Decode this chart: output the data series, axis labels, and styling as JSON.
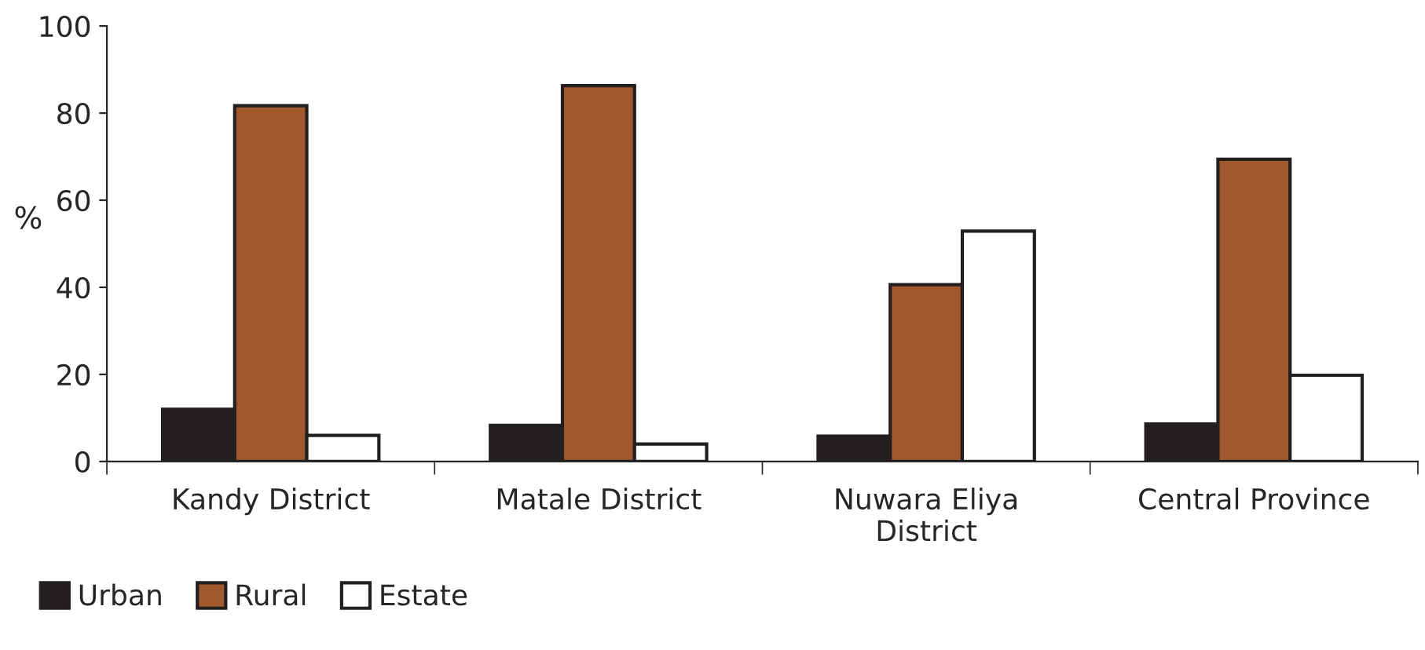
{
  "chart_data": {
    "type": "bar",
    "ylabel": "%",
    "categories": [
      "Kandy District",
      "Matale District",
      "Nuwara Eliya\nDistrict",
      "Central Province"
    ],
    "series": [
      {
        "name": "Urban",
        "color": "#231f20",
        "values": [
          12,
          8.3,
          5.8,
          8.6
        ]
      },
      {
        "name": "Rural",
        "color": "#a0582c",
        "values": [
          81.7,
          86.3,
          40.6,
          69.4
        ]
      },
      {
        "name": "Estate",
        "color": "#ffffff",
        "values": [
          6,
          4,
          52.9,
          19.8
        ]
      }
    ],
    "ylim": [
      0,
      100
    ],
    "yticks": [
      0,
      20,
      40,
      60,
      80,
      100
    ],
    "grid": false,
    "legend": "bottom left"
  }
}
